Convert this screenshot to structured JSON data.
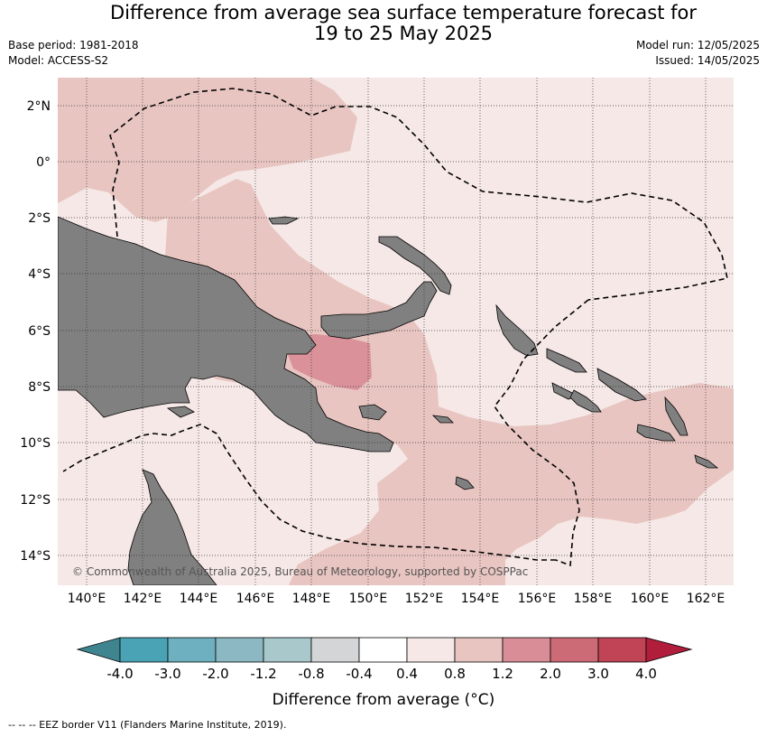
{
  "title_line1": "Difference from average sea surface temperature forecast for",
  "title_line2": "19 to 25 May 2025",
  "base_period": "Base period: 1981-2018",
  "model": "Model: ACCESS-S2",
  "model_run": "Model run: 12/05/2025",
  "issued": "Issued: 14/05/2025",
  "credit": "© Commonwealth of Australia 2025, Bureau of Meteorology, supported by COSPPac",
  "lat_ticks": [
    "2°N",
    "0°",
    "2°S",
    "4°S",
    "6°S",
    "8°S",
    "10°S",
    "12°S",
    "14°S"
  ],
  "lon_ticks": [
    "140°E",
    "142°E",
    "144°E",
    "146°E",
    "148°E",
    "150°E",
    "152°E",
    "154°E",
    "156°E",
    "158°E",
    "160°E",
    "162°E"
  ],
  "colorbar": {
    "labels": [
      "-4.0",
      "-3.0",
      "-2.0",
      "-1.2",
      "-0.8",
      "-0.4",
      "0.4",
      "0.8",
      "1.2",
      "2.0",
      "3.0",
      "4.0"
    ],
    "colors": [
      "#3f8590",
      "#4aa3b4",
      "#6eb0bf",
      "#8cb8c3",
      "#a8c8cc",
      "#d4d5d6",
      "#ffffff",
      "#f5e8e6",
      "#e8c5c1",
      "#d98e97",
      "#cc6b75",
      "#c04356",
      "#b01e3c"
    ],
    "title": "Difference from average (°C)"
  },
  "eez_note": "--  --  -- EEZ border V11 (Flanders Marine Institute, 2019).",
  "palette": {
    "land": "#808080",
    "light_anomaly": "#f5e8e6",
    "mid_anomaly": "#e8c5c1",
    "strong_anomaly": "#d98e97"
  }
}
